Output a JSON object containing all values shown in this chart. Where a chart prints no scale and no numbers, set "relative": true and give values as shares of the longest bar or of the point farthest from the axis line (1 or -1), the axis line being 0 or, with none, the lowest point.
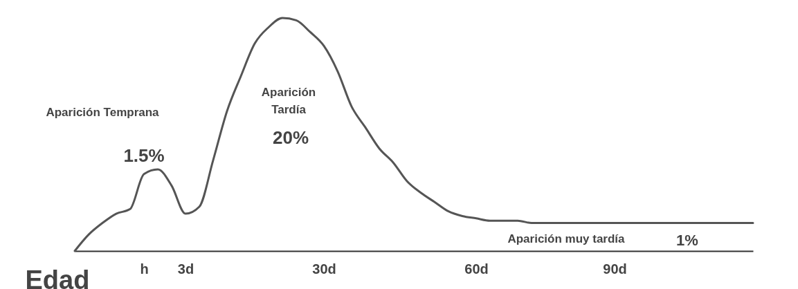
{
  "chart_data": {
    "type": "line",
    "relative": true,
    "xlabel": "Edad",
    "categories": [
      null,
      null,
      null,
      null,
      null,
      "h",
      null,
      null,
      "3d",
      null,
      null,
      null,
      null,
      null,
      null,
      null,
      null,
      null,
      "30d",
      null,
      null,
      null,
      null,
      null,
      null,
      null,
      null,
      null,
      null,
      "60d",
      null,
      null,
      null,
      null,
      null,
      null,
      null,
      null,
      null,
      "90d",
      null,
      null,
      null,
      null,
      null,
      null,
      null,
      null,
      null,
      null
    ],
    "series": [
      {
        "color": "#555555",
        "values": [
          0,
          0.07,
          0.12,
          0.16,
          0.18,
          0.33,
          0.35,
          0.28,
          0.16,
          0.19,
          0.39,
          0.6,
          0.75,
          0.89,
          0.96,
          1,
          0.99,
          0.94,
          0.88,
          0.77,
          0.62,
          0.53,
          0.44,
          0.38,
          0.3,
          0.25,
          0.21,
          0.17,
          0.15,
          0.14,
          0.13,
          0.13,
          0.13,
          0.12,
          0.12,
          0.12,
          0.12,
          0.12,
          0.12,
          0.12,
          0.12,
          0.12,
          0.12,
          0.12,
          0.12,
          0.12,
          0.12,
          0.12,
          0.12,
          0.12
        ]
      }
    ],
    "annotations": [
      "Aparición Temprana",
      "1.5%",
      "Aparición\nTardía",
      "20%",
      "Aparición muy tardía",
      "1%"
    ]
  }
}
